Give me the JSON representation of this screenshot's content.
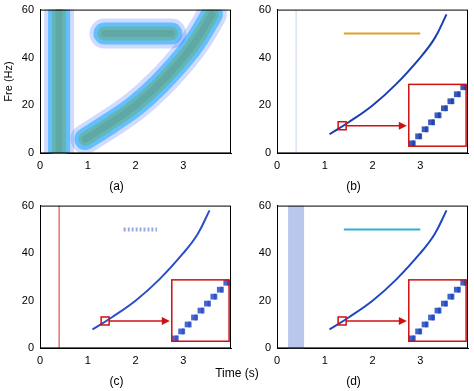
{
  "chart_data": [
    {
      "type": "line",
      "title": "(a)",
      "y_label": "Fre (Hz)",
      "xlim": [
        0,
        4
      ],
      "xticks": [
        0,
        1,
        2,
        3
      ],
      "ylim": [
        0,
        60
      ],
      "yticks": [
        0,
        20,
        40,
        60
      ],
      "grid": false,
      "series": [
        {
          "x": [
            0.4,
            0.4
          ],
          "values": [
            0,
            60
          ],
          "color": "#c00000",
          "line_style": "blurred"
        },
        {
          "x": [
            1.35,
            2.75
          ],
          "values": [
            50,
            50
          ],
          "color": "#c00000",
          "line_style": "blurred"
        },
        {
          "x": [
            0.95,
            1.5,
            2.0,
            2.5,
            3.0,
            3.3,
            3.6
          ],
          "values": [
            6,
            13,
            20,
            29,
            40,
            48,
            58
          ],
          "color": "#c00000",
          "line_style": "blurred"
        }
      ]
    },
    {
      "type": "line",
      "title": "(b)",
      "xlim": [
        0,
        4
      ],
      "xticks": [
        0,
        1,
        2,
        3
      ],
      "ylim": [
        0,
        60
      ],
      "yticks": [
        0,
        20,
        40,
        60
      ],
      "grid": false,
      "series": [
        {
          "x": [
            0.4,
            0.4
          ],
          "values": [
            0,
            60
          ],
          "color": "#c8d4ee",
          "line_style": "thin"
        },
        {
          "x": [
            1.4,
            3.0
          ],
          "values": [
            50,
            50
          ],
          "color": "#e0a020",
          "line_style": "solid"
        },
        {
          "x": [
            1.1,
            1.5,
            2.0,
            2.5,
            3.0,
            3.3,
            3.55
          ],
          "values": [
            8,
            13,
            20,
            29,
            40,
            48,
            58
          ],
          "color": "#1a3fb0",
          "line_style": "solid"
        }
      ]
    },
    {
      "type": "line",
      "title": "(c)",
      "x_label": "Time (s)",
      "xlim": [
        0,
        4
      ],
      "xticks": [
        0,
        1,
        2,
        3
      ],
      "ylim": [
        0,
        60
      ],
      "yticks": [
        0,
        20,
        40,
        60
      ],
      "grid": false,
      "series": [
        {
          "x": [
            0.4,
            0.4
          ],
          "values": [
            0,
            60
          ],
          "color": "#d03030",
          "line_style": "thin"
        },
        {
          "x": [
            1.75,
            2.45
          ],
          "values": [
            50,
            50
          ],
          "color": "#9aa8e0",
          "line_style": "dotted"
        },
        {
          "x": [
            1.1,
            1.5,
            2.0,
            2.5,
            3.0,
            3.3,
            3.55
          ],
          "values": [
            8,
            13,
            20,
            29,
            40,
            48,
            58
          ],
          "color": "#2a4fc8",
          "line_style": "solid"
        }
      ]
    },
    {
      "type": "line",
      "title": "(d)",
      "xlim": [
        0,
        4
      ],
      "xticks": [
        0,
        1,
        2,
        3
      ],
      "ylim": [
        0,
        60
      ],
      "yticks": [
        0,
        20,
        40,
        60
      ],
      "grid": false,
      "series": [
        {
          "x": [
            0.4,
            0.4
          ],
          "values": [
            0,
            60
          ],
          "color": "#b9c6ee",
          "line_style": "band"
        },
        {
          "x": [
            1.4,
            3.0
          ],
          "values": [
            50,
            50
          ],
          "color": "#30b0d0",
          "line_style": "solid"
        },
        {
          "x": [
            1.1,
            1.5,
            2.0,
            2.5,
            3.0,
            3.3,
            3.55
          ],
          "values": [
            8,
            13,
            20,
            29,
            40,
            48,
            58
          ],
          "color": "#1f48c0",
          "line_style": "solid"
        }
      ]
    }
  ]
}
